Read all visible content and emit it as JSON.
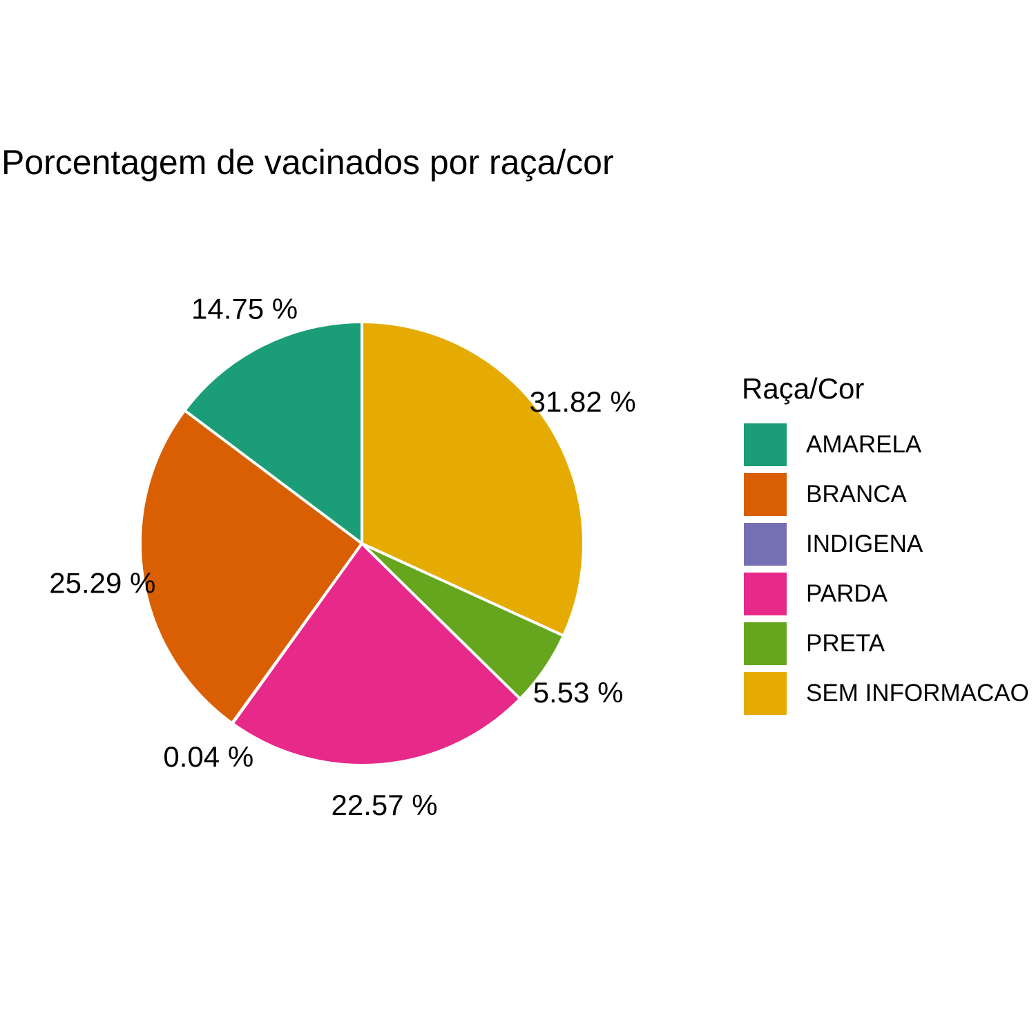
{
  "chart_data": {
    "type": "pie",
    "title": "Porcentagem de vacinados por raça/cor",
    "legend_title": "Raça/Cor",
    "legend_position": "right",
    "slices": [
      {
        "category": "AMARELA",
        "value": 14.75,
        "label": "14.75 %",
        "color": "#1B9E77"
      },
      {
        "category": "BRANCA",
        "value": 25.29,
        "label": "25.29 %",
        "color": "#D95F02"
      },
      {
        "category": "INDIGENA",
        "value": 0.04,
        "label": "0.04 %",
        "color": "#7570B3"
      },
      {
        "category": "PARDA",
        "value": 22.57,
        "label": "22.57 %",
        "color": "#E7298A"
      },
      {
        "category": "PRETA",
        "value": 5.53,
        "label": "5.53 %",
        "color": "#66A61E"
      },
      {
        "category": "SEM INFORMACAO",
        "value": 31.82,
        "label": "31.82 %",
        "color": "#E6AB02"
      }
    ]
  }
}
